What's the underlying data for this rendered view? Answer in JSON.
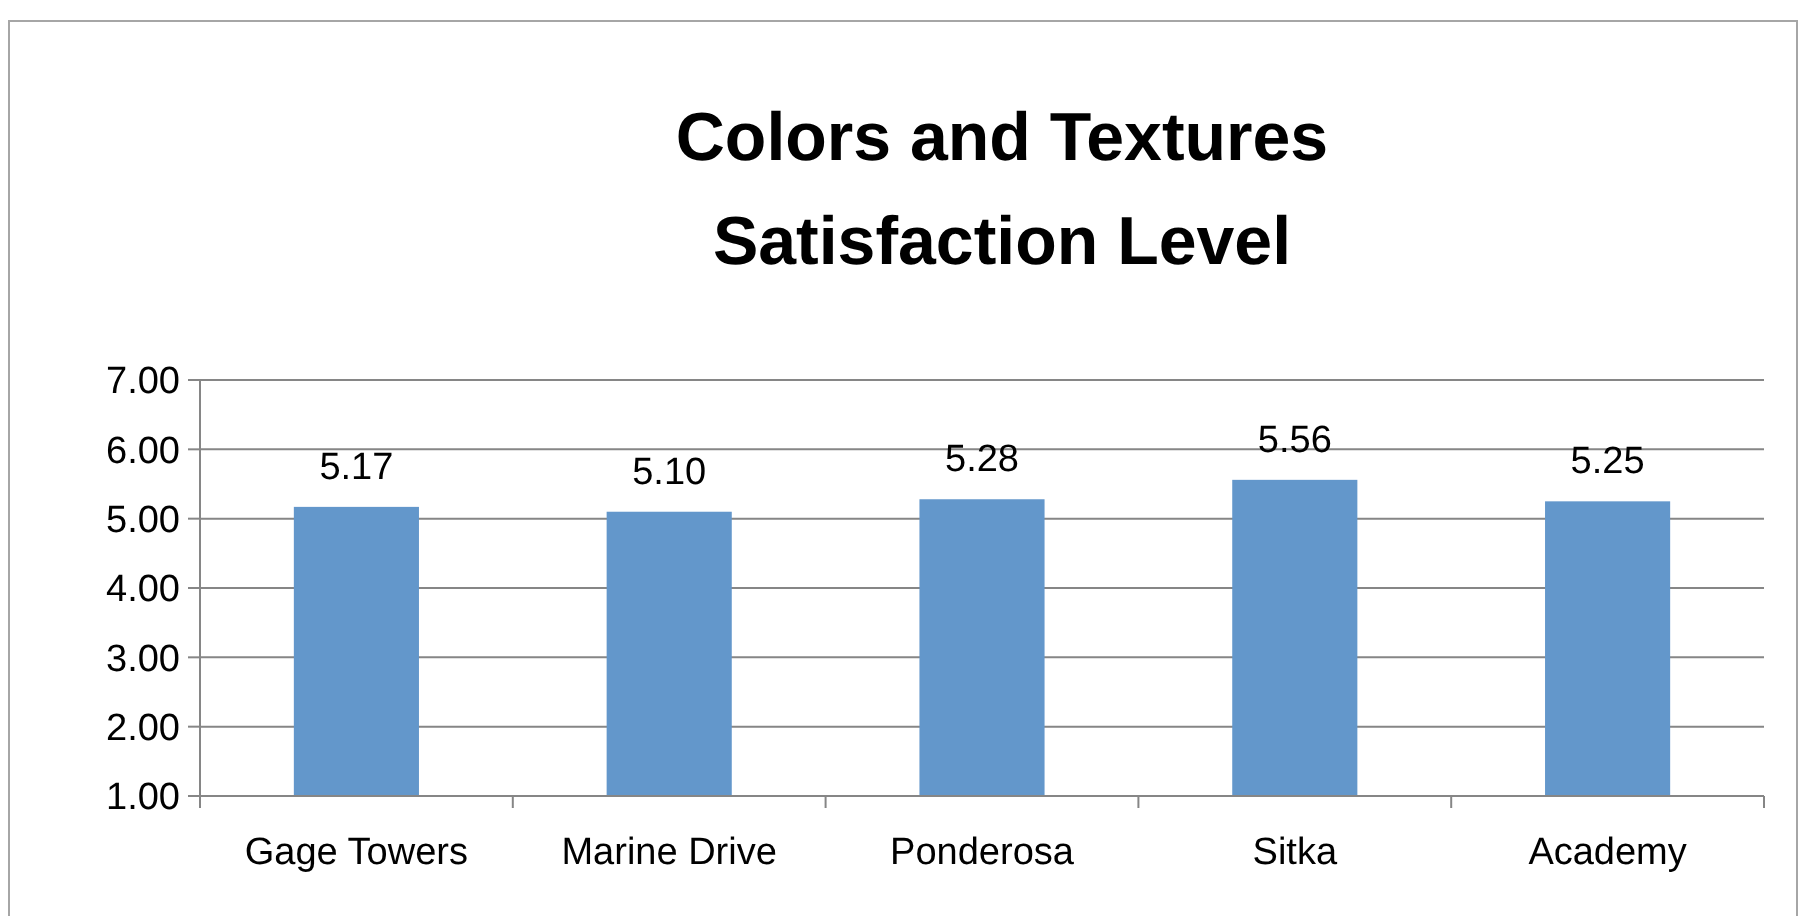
{
  "chart_data": {
    "type": "bar",
    "title": "Colors and Textures\nSatisfaction Level",
    "categories": [
      "Gage Towers",
      "Marine Drive",
      "Ponderosa",
      "Sitka",
      "Academy"
    ],
    "values": [
      5.17,
      5.1,
      5.28,
      5.56,
      5.25
    ],
    "value_labels": [
      "5.17",
      "5.10",
      "5.28",
      "5.56",
      "5.25"
    ],
    "color": "#6397cb",
    "ylim": [
      1,
      7
    ],
    "yticks": [
      {
        "value": 1,
        "label": "1.00"
      },
      {
        "value": 2,
        "label": "2.00"
      },
      {
        "value": 3,
        "label": "3.00"
      },
      {
        "value": 4,
        "label": "4.00"
      },
      {
        "value": 5,
        "label": "5.00"
      },
      {
        "value": 6,
        "label": "6.00"
      },
      {
        "value": 7,
        "label": "7.00"
      }
    ],
    "grid": "y"
  }
}
